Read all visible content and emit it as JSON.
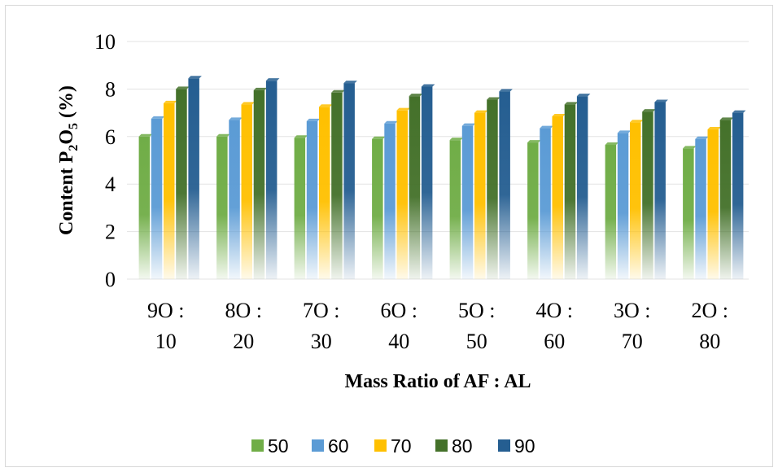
{
  "chart_data": {
    "type": "bar",
    "categories": [
      [
        "9O :",
        "10"
      ],
      [
        "8O :",
        "20"
      ],
      [
        "7O :",
        "30"
      ],
      [
        "6O :",
        "40"
      ],
      [
        "5O :",
        "50"
      ],
      [
        "4O :",
        "60"
      ],
      [
        "3O :",
        "70"
      ],
      [
        "2O :",
        "80"
      ]
    ],
    "series": [
      {
        "name": "50",
        "color": "#70ad47",
        "values": [
          6.0,
          6.0,
          5.95,
          5.9,
          5.85,
          5.75,
          5.65,
          5.5
        ]
      },
      {
        "name": "60",
        "color": "#5b9bd5",
        "values": [
          6.75,
          6.7,
          6.65,
          6.55,
          6.45,
          6.35,
          6.15,
          5.9
        ]
      },
      {
        "name": "70",
        "color": "#ffc000",
        "values": [
          7.4,
          7.35,
          7.25,
          7.1,
          7.0,
          6.85,
          6.6,
          6.3
        ]
      },
      {
        "name": "80",
        "color": "#44712a",
        "values": [
          8.0,
          7.95,
          7.85,
          7.7,
          7.55,
          7.35,
          7.05,
          6.7
        ]
      },
      {
        "name": "90",
        "color": "#255e91",
        "values": [
          8.45,
          8.35,
          8.25,
          8.1,
          7.9,
          7.7,
          7.45,
          7.0
        ]
      }
    ],
    "ylim": [
      0,
      10
    ],
    "yticks": [
      "0",
      "2",
      "4",
      "6",
      "8",
      "10"
    ],
    "ylabel": {
      "pre": "Content  P",
      "sub1": "2",
      "mid": "O",
      "sub2": "5",
      "post": " (%)"
    },
    "xlabel": "Mass Ratio of AF : AL",
    "grid": true,
    "legend_position": "bottom"
  }
}
